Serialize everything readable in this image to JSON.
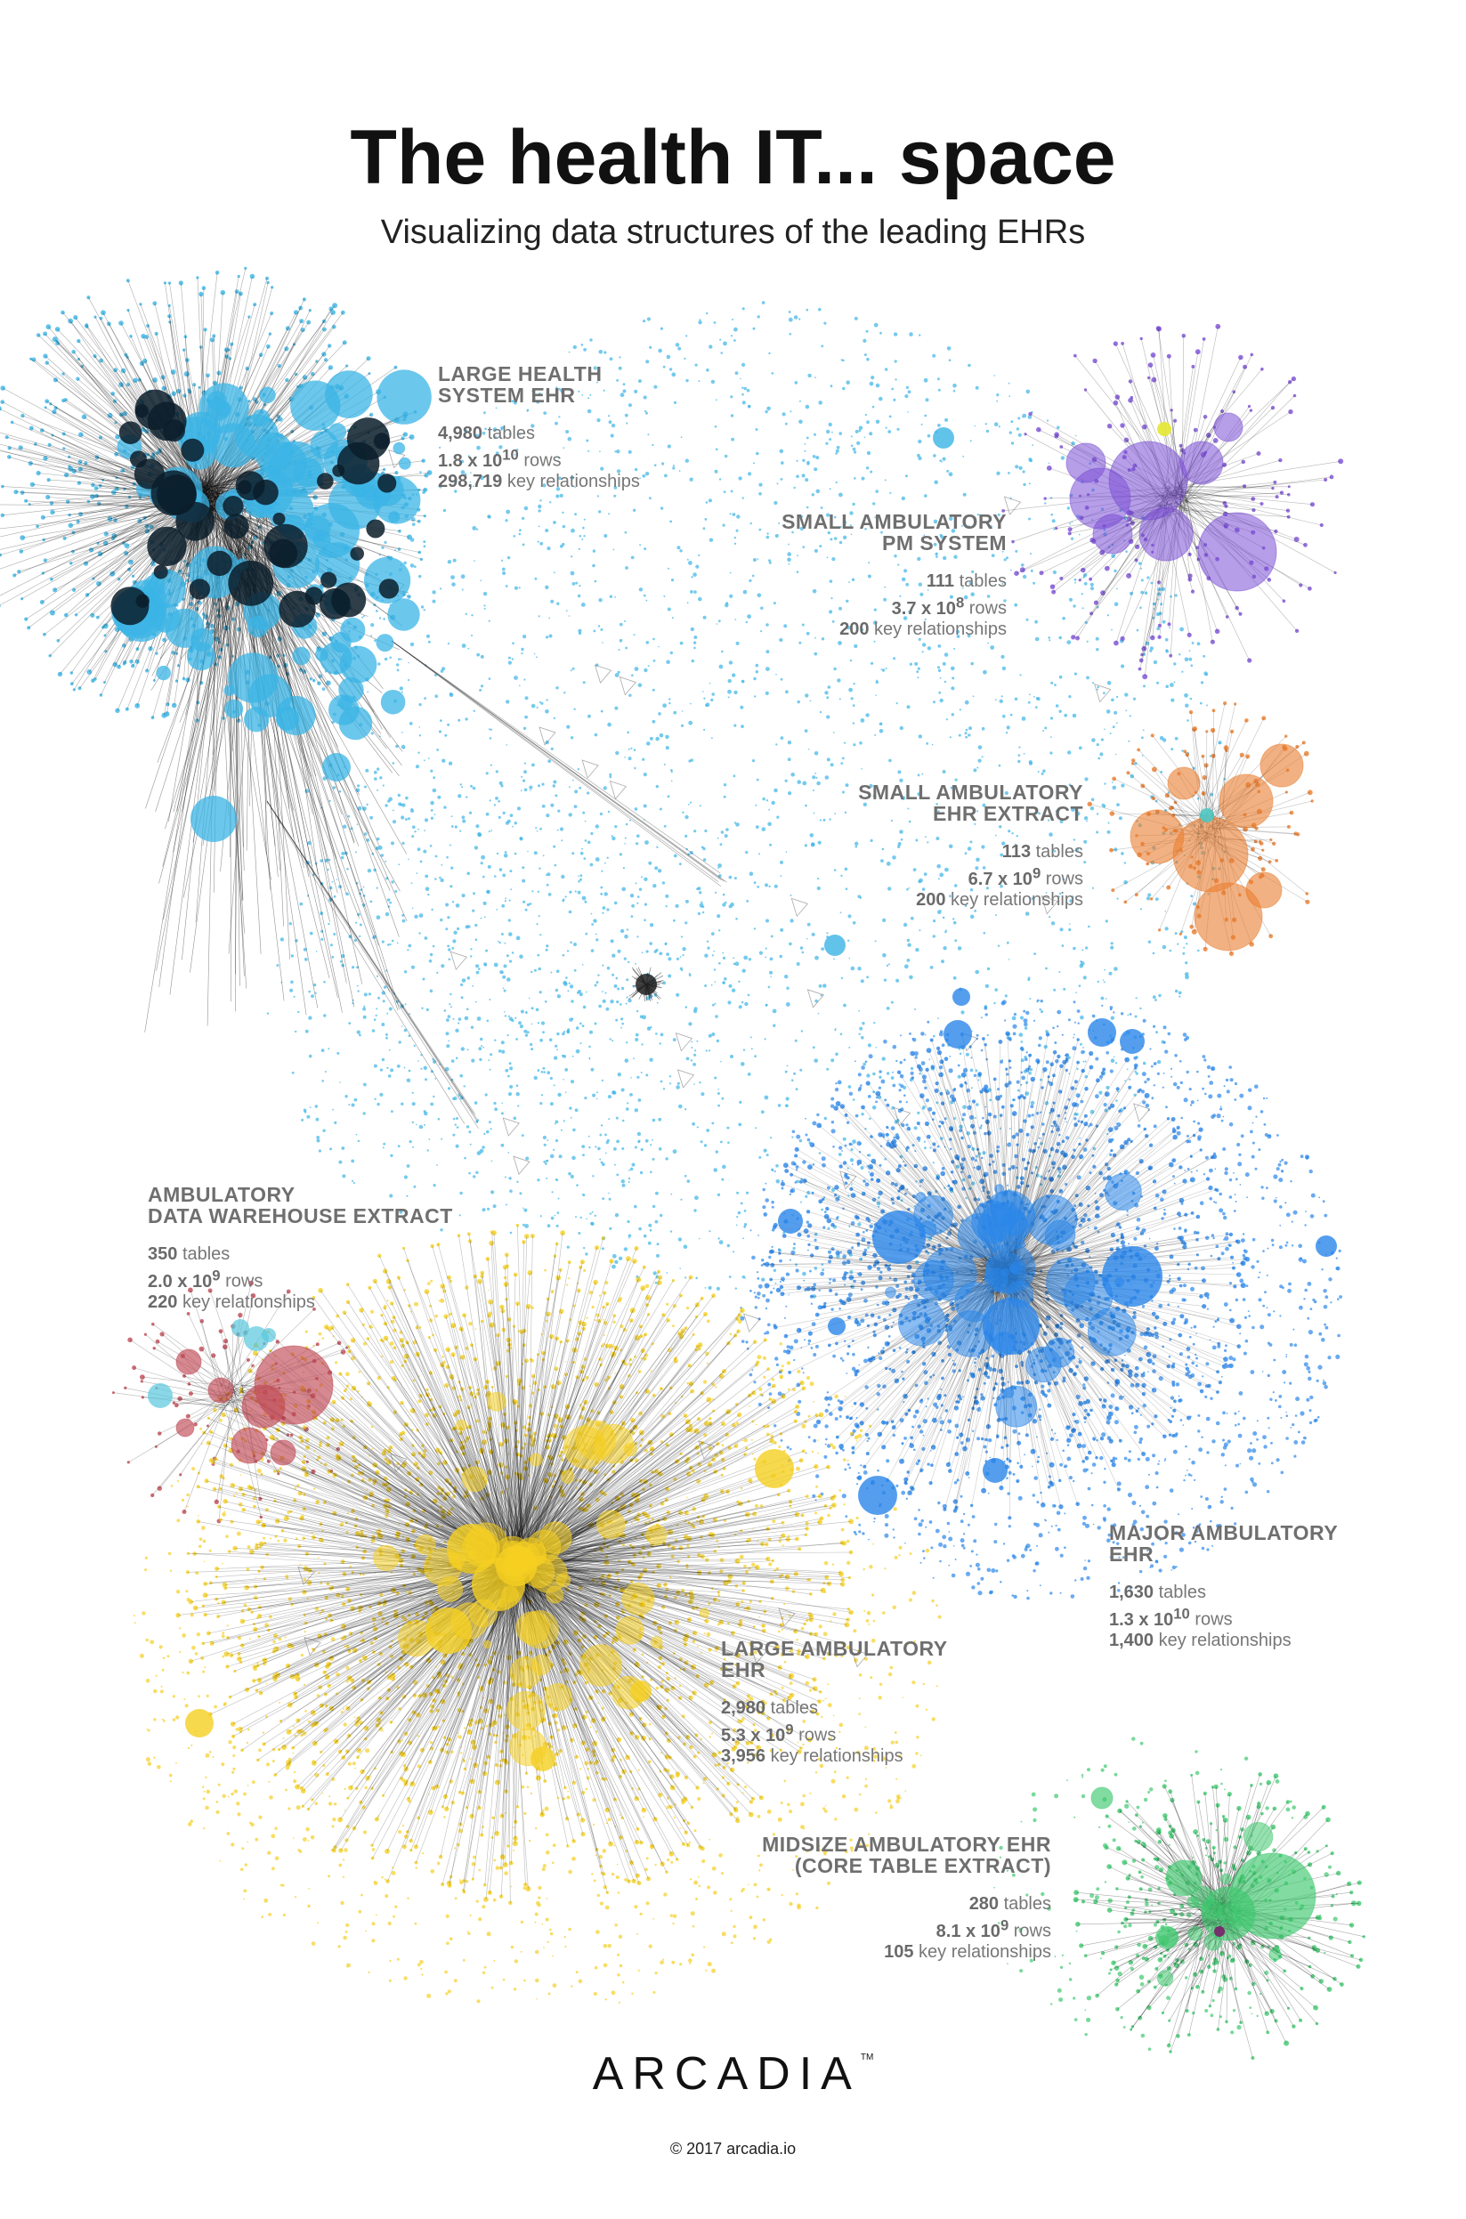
{
  "header": {
    "title": "The health IT... space",
    "subtitle": "Visualizing data structures of the leading EHRs"
  },
  "clusters": [
    {
      "name_lines": [
        "LARGE HEALTH",
        "SYSTEM EHR"
      ],
      "tables": "4,980",
      "tables_label": "tables",
      "rows_base": "1.8 x 10",
      "rows_exp": "10",
      "rows_label": "rows",
      "keys": "298,719",
      "keys_label": "key relationships",
      "color": "#3bb4e5"
    },
    {
      "name_lines": [
        "SMALL AMBULATORY",
        "PM SYSTEM"
      ],
      "tables": "111",
      "tables_label": "tables",
      "rows_base": "3.7 x 10",
      "rows_exp": "8",
      "rows_label": "rows",
      "keys": "200",
      "keys_label": "key relationships",
      "color": "#7a4fd6"
    },
    {
      "name_lines": [
        "SMALL AMBULATORY",
        "EHR EXTRACT"
      ],
      "tables": "113",
      "tables_label": "tables",
      "rows_base": "6.7 x 10",
      "rows_exp": "9",
      "rows_label": "rows",
      "keys": "200",
      "keys_label": "key relationships",
      "color": "#ea7d2e"
    },
    {
      "name_lines": [
        "AMBULATORY",
        "DATA WAREHOUSE EXTRACT"
      ],
      "tables": "350",
      "tables_label": "tables",
      "rows_base": "2.0 x 10",
      "rows_exp": "9",
      "rows_label": "rows",
      "keys": "220",
      "keys_label": "key relationships",
      "color": "#c04a55"
    },
    {
      "name_lines": [
        "MAJOR AMBULATORY",
        "EHR"
      ],
      "tables": "1,630",
      "tables_label": "tables",
      "rows_base": "1.3 x 10",
      "rows_exp": "10",
      "rows_label": "rows",
      "keys": "1,400",
      "keys_label": "key relationships",
      "color": "#2a86ea"
    },
    {
      "name_lines": [
        "LARGE AMBULATORY",
        "EHR"
      ],
      "tables": "2,980",
      "tables_label": "tables",
      "rows_base": "5.3 x 10",
      "rows_exp": "9",
      "rows_label": "rows",
      "keys": "3,956",
      "keys_label": "key relationships",
      "color": "#f5cf22"
    },
    {
      "name_lines": [
        "MIDSIZE AMBULATORY EHR",
        "(CORE TABLE EXTRACT)"
      ],
      "tables": "280",
      "tables_label": "tables",
      "rows_base": "8.1 x 10",
      "rows_exp": "9",
      "rows_label": "rows",
      "keys": "105",
      "keys_label": "key relationships",
      "color": "#3fc96f"
    }
  ],
  "footer": {
    "logo": "ARCADIA",
    "trademark": "TM",
    "copyright": "© 2017 arcadia.io"
  }
}
